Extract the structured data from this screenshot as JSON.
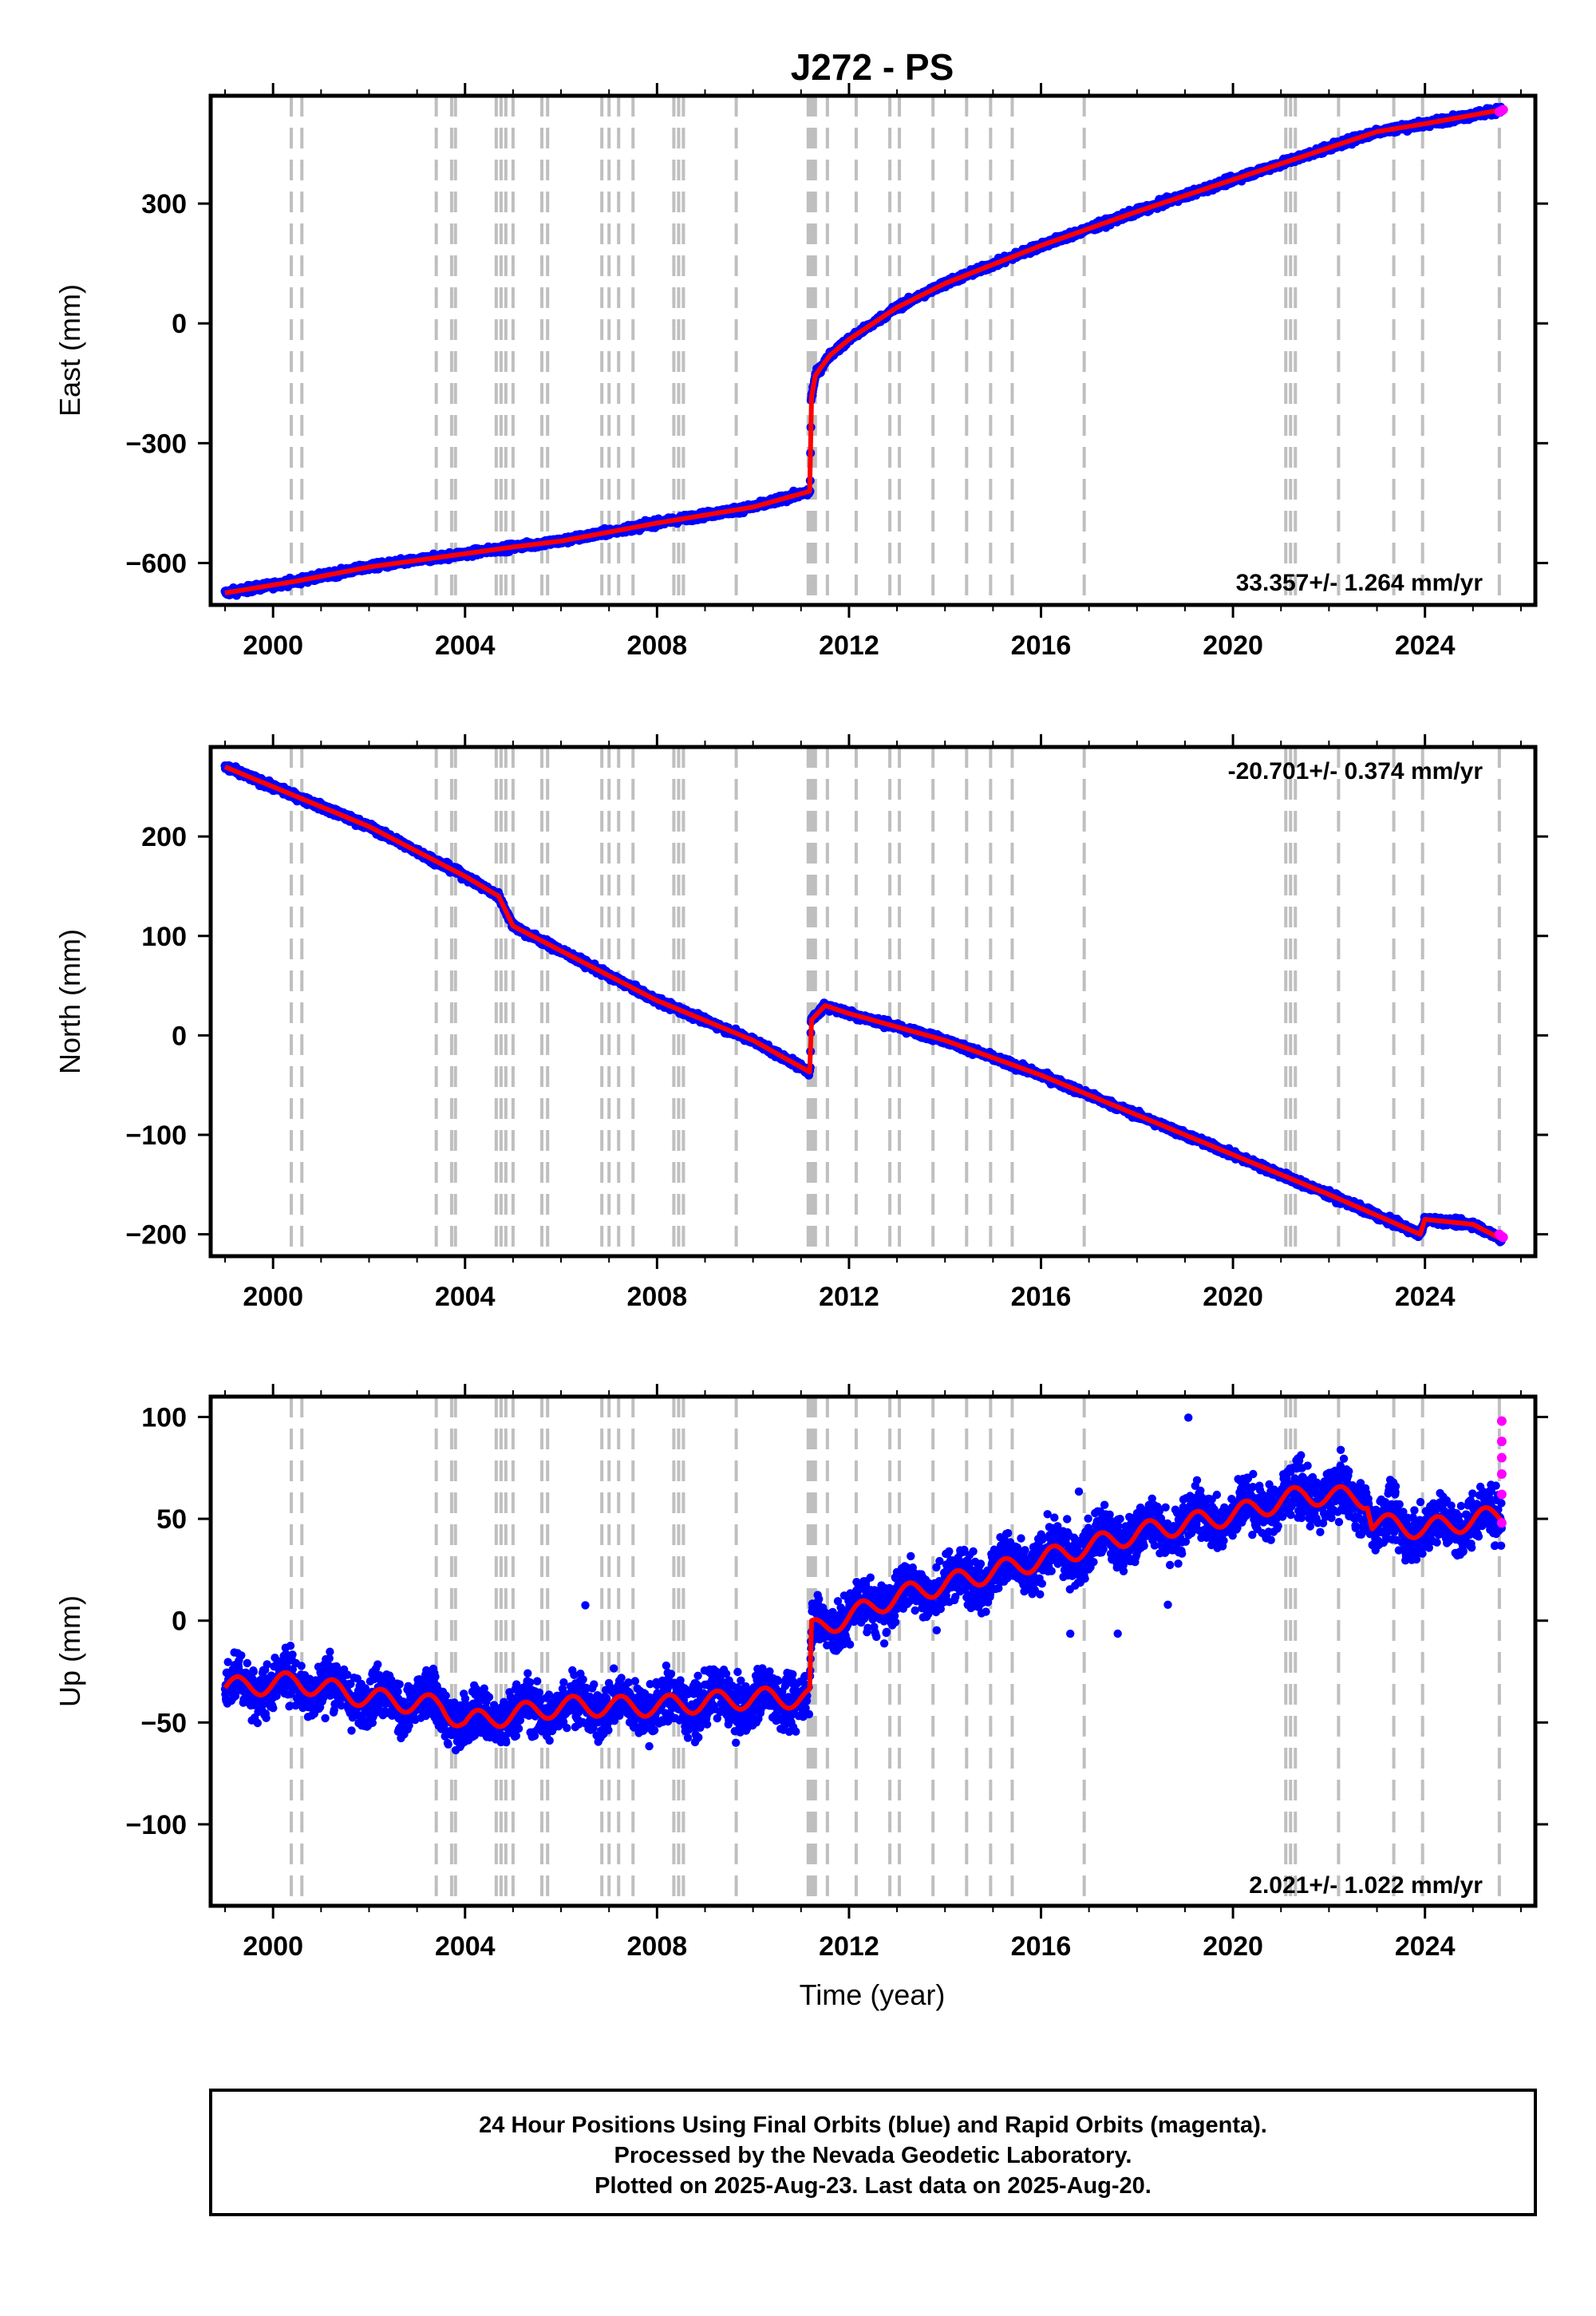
{
  "title": "J272 - PS",
  "xlabel": "Time (year)",
  "footer": {
    "line1": "24 Hour Positions Using Final Orbits (blue) and Rapid Orbits (magenta).",
    "line2": "Processed by the Nevada Geodetic Laboratory.",
    "line3": "Plotted on 2025-Aug-23. Last data on 2025-Aug-20."
  },
  "colors": {
    "final_orbits": "#0000ff",
    "rapid_orbits": "#ff00ff",
    "model": "#ff0000",
    "event_lines": "#bfbfbf"
  },
  "chart_data": [
    {
      "type": "scatter",
      "panel": "east",
      "ylabel": "East (mm)",
      "rate_text": "33.357+/- 1.264 mm/yr",
      "xlim": [
        1998.7,
        2026.3
      ],
      "ylim": [
        -705,
        570
      ],
      "yticks": [
        -600,
        -300,
        0,
        300
      ],
      "xticks": [
        2000,
        2004,
        2008,
        2012,
        2016,
        2020,
        2024
      ],
      "grid": false,
      "series": [
        {
          "name": "Final Orbits",
          "x": [
            1999.0,
            2000.0,
            2000.5,
            2002.0,
            2003.5,
            2005.0,
            2006.0,
            2008.0,
            2010.0,
            2011.19,
            2011.21,
            2011.3,
            2011.6,
            2012.0,
            2013.0,
            2014.0,
            2016.0,
            2018.0,
            2020.0,
            2022.0,
            2023.0,
            2024.0,
            2025.6
          ],
          "y": [
            -675,
            -655,
            -645,
            -610,
            -585,
            -560,
            -545,
            -500,
            -460,
            -420,
            -190,
            -130,
            -80,
            -40,
            40,
            100,
            195,
            280,
            360,
            440,
            480,
            500,
            535
          ]
        },
        {
          "name": "Rapid Orbits",
          "x": [
            2025.55,
            2025.6,
            2025.63
          ],
          "y": [
            530,
            533,
            535
          ]
        }
      ],
      "offsets": [
        2011.2
      ]
    },
    {
      "type": "scatter",
      "panel": "north",
      "ylabel": "North (mm)",
      "rate_text": "-20.701+/- 0.374 mm/yr",
      "xlim": [
        1998.7,
        2026.3
      ],
      "ylim": [
        -222,
        290
      ],
      "yticks": [
        -200,
        -100,
        0,
        100,
        200
      ],
      "xticks": [
        2000,
        2004,
        2008,
        2012,
        2016,
        2020,
        2024
      ],
      "grid": false,
      "series": [
        {
          "name": "Final Orbits",
          "x": [
            1999.0,
            2000.0,
            2002.0,
            2004.0,
            2004.7,
            2005.0,
            2006.0,
            2008.0,
            2010.0,
            2011.19,
            2011.21,
            2011.5,
            2012.0,
            2014.0,
            2016.0,
            2018.0,
            2020.0,
            2022.0,
            2023.9,
            2024.0,
            2025.0,
            2025.6
          ],
          "y": [
            270,
            250,
            210,
            160,
            140,
            110,
            85,
            35,
            -5,
            -37,
            15,
            30,
            22,
            -5,
            -40,
            -80,
            -120,
            -160,
            -200,
            -185,
            -190,
            -205
          ]
        },
        {
          "name": "Rapid Orbits",
          "x": [
            2025.55,
            2025.6,
            2025.63
          ],
          "y": [
            -200,
            -202,
            -203
          ]
        }
      ],
      "offsets": [
        2011.2,
        2023.95
      ]
    },
    {
      "type": "scatter",
      "panel": "up",
      "ylabel": "Up (mm)",
      "rate_text": "2.021+/- 1.022 mm/yr",
      "xlim": [
        1998.7,
        2026.3
      ],
      "ylim": [
        -140,
        110
      ],
      "yticks": [
        -100,
        -50,
        0,
        50,
        100
      ],
      "xticks": [
        2000,
        2004,
        2008,
        2012,
        2016,
        2020,
        2024
      ],
      "grid": false,
      "series": [
        {
          "name": "Final Orbits",
          "x": [
            1999.0,
            2000.5,
            2002.0,
            2003.5,
            2004.0,
            2006.0,
            2008.0,
            2010.0,
            2011.19,
            2011.21,
            2012.0,
            2013.0,
            2014.0,
            2016.0,
            2018.0,
            2020.0,
            2021.5,
            2022.8,
            2022.9,
            2024.0,
            2025.6
          ],
          "y": [
            -33,
            -30,
            -38,
            -42,
            -50,
            -42,
            -42,
            -38,
            -38,
            -5,
            2,
            12,
            18,
            30,
            43,
            52,
            62,
            60,
            48,
            45,
            52
          ]
        },
        {
          "name": "Rapid Orbits",
          "x": [
            2025.6,
            2025.6,
            2025.6,
            2025.6,
            2025.6,
            2025.6
          ],
          "y": [
            98,
            88,
            80,
            72,
            62,
            48
          ]
        }
      ],
      "offsets": [
        2011.2,
        2022.85
      ]
    }
  ],
  "event_years": [
    2000.38,
    2000.6,
    2003.4,
    2003.72,
    2003.8,
    2004.65,
    2004.75,
    2004.85,
    2005.0,
    2005.6,
    2005.72,
    2006.85,
    2007.0,
    2007.2,
    2007.5,
    2008.35,
    2008.45,
    2008.55,
    2009.65,
    2011.15,
    2011.2,
    2011.25,
    2011.3,
    2011.55,
    2012.15,
    2012.85,
    2013.05,
    2013.75,
    2014.45,
    2014.95,
    2015.4,
    2016.9,
    2021.1,
    2021.2,
    2021.3,
    2022.2,
    2023.35,
    2023.95,
    2025.55
  ]
}
